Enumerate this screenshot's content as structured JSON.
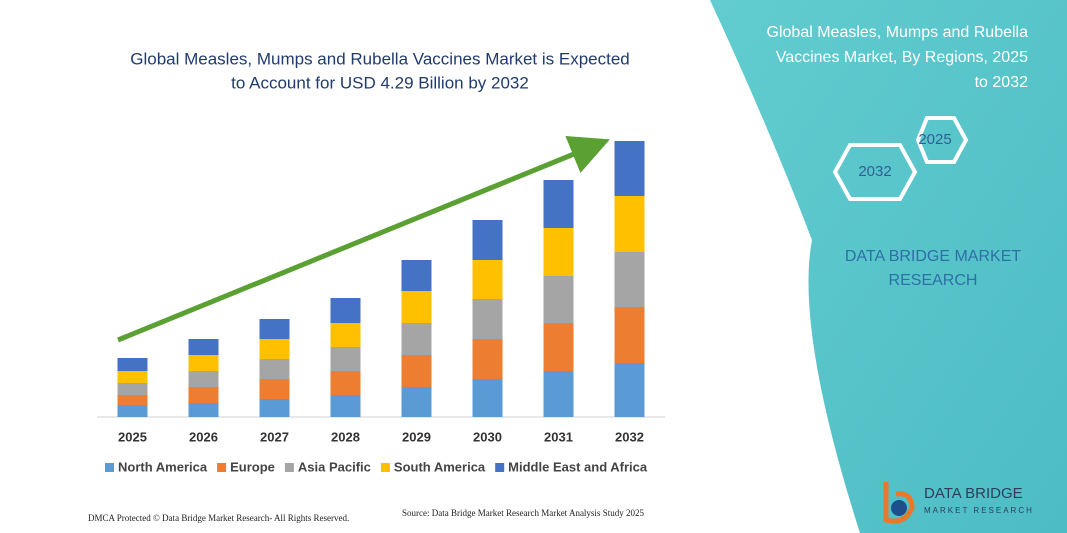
{
  "chart_data": {
    "type": "stacked-bar",
    "title": [
      "Global Measles, Mumps and Rubella Vaccines Market is Expected",
      "to Account for USD 4.29 Billion by 2032"
    ],
    "categories": [
      "2025",
      "2026",
      "2027",
      "2028",
      "2029",
      "2030",
      "2031",
      "2032"
    ],
    "ylim": [
      0,
      280
    ],
    "series": [
      {
        "name": "North America",
        "color": "#5b9bd5",
        "values": [
          12,
          14,
          18,
          22,
          30,
          38,
          46,
          54
        ]
      },
      {
        "name": "Europe",
        "color": "#ed7d31",
        "values": [
          10,
          16,
          20,
          24,
          32,
          40,
          48,
          56
        ]
      },
      {
        "name": "Asia Pacific",
        "color": "#a5a5a5",
        "values": [
          12,
          16,
          20,
          24,
          32,
          40,
          47,
          55
        ]
      },
      {
        "name": "South America",
        "color": "#ffc000",
        "values": [
          12,
          16,
          20,
          24,
          32,
          39,
          48,
          56
        ]
      },
      {
        "name": "Middle East and Africa",
        "color": "#4472c4",
        "values": [
          13,
          16,
          20,
          25,
          31,
          40,
          48,
          55
        ]
      }
    ]
  },
  "side_panel": {
    "title": [
      "Global Measles, Mumps and Rubella",
      "Vaccines Market, By Regions, 2025",
      "to 2032"
    ],
    "hexagons": [
      "2025",
      "2032"
    ],
    "brand": [
      "DATA BRIDGE MARKET",
      "RESEARCH"
    ]
  },
  "footer": {
    "dmca": "DMCA Protected © Data Bridge Market Research- All Rights Reserved.",
    "source": "Source: Data Bridge Market Research Market Analysis Study 2025"
  },
  "logo": {
    "name": "DATA BRIDGE",
    "tagline": "MARKET RESEARCH"
  }
}
